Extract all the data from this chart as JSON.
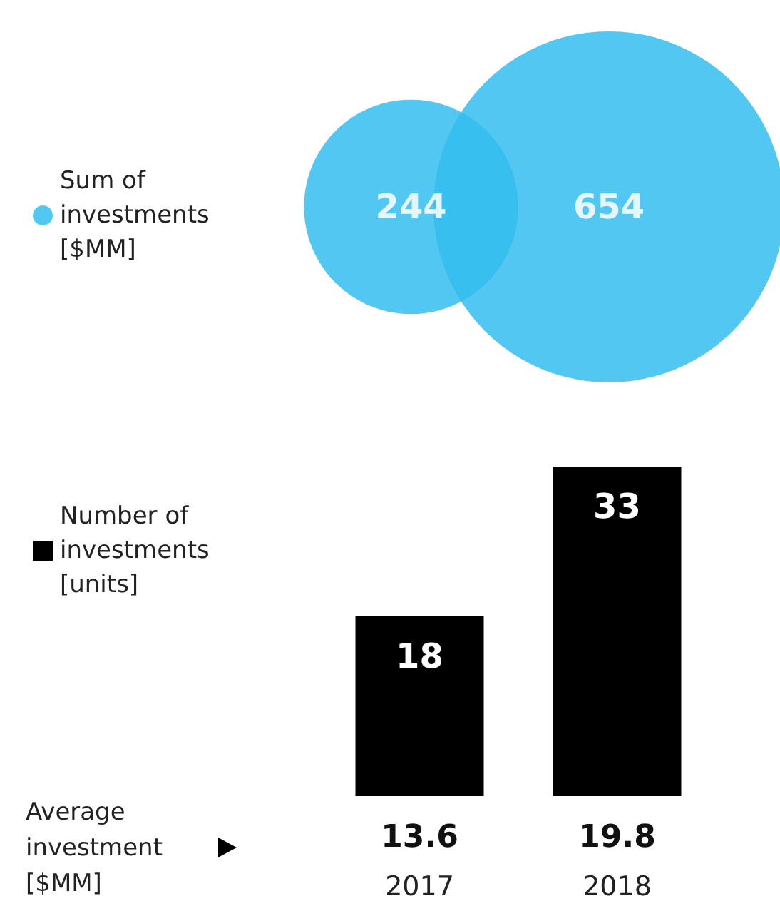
{
  "chart_data": [
    {
      "type": "other",
      "series": [
        {
          "name": "Sum of investments [$MM]",
          "color": "#33bdef",
          "values": [
            244,
            654
          ]
        }
      ],
      "data_labels": true,
      "legend": "left"
    },
    {
      "type": "bar",
      "categories": [
        "2017",
        "2018"
      ],
      "series": [
        {
          "name": "Number of investments [units]",
          "color": "#000000",
          "values": [
            18,
            33
          ]
        }
      ],
      "data_labels": true,
      "legend": "left",
      "annotations": [
        "Average investment [$MM]",
        "13.6",
        "19.8"
      ]
    }
  ]
}
